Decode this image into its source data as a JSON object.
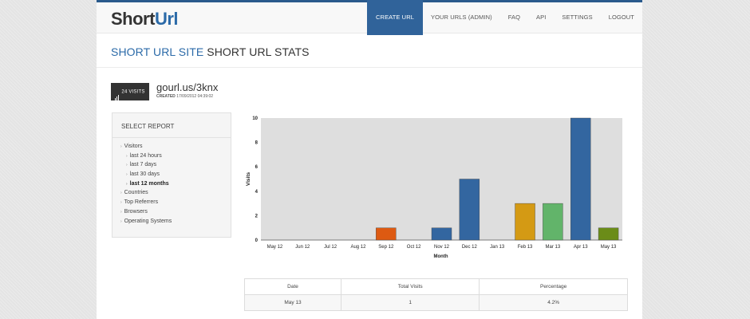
{
  "header": {
    "logo_part1": "Short",
    "logo_part2": "Url",
    "nav": [
      "CREATE URL",
      "YOUR URLS (ADMIN)",
      "FAQ",
      "API",
      "SETTINGS",
      "LOGOUT"
    ],
    "active_nav_index": 0
  },
  "page": {
    "heading_site": "SHORT URL SITE",
    "heading_title": "SHORT URL STATS"
  },
  "url_info": {
    "visits_badge": "24 VISITS",
    "short_url": "gourl.us/3knx",
    "created_label": "CREATED",
    "created_value": "17/09/2012 04:39:02"
  },
  "report": {
    "title": "SELECT REPORT",
    "items": [
      {
        "label": "Visitors",
        "level": 0,
        "bold": false
      },
      {
        "label": "last 24 hours",
        "level": 1,
        "bold": false
      },
      {
        "label": "last 7 days",
        "level": 1,
        "bold": false
      },
      {
        "label": "last 30 days",
        "level": 1,
        "bold": false
      },
      {
        "label": "last 12 months",
        "level": 1,
        "bold": true
      },
      {
        "label": "Countries",
        "level": 0,
        "bold": false
      },
      {
        "label": "Top Referrers",
        "level": 0,
        "bold": false
      },
      {
        "label": "Browsers",
        "level": 0,
        "bold": false
      },
      {
        "label": "Operating Systems",
        "level": 0,
        "bold": false
      }
    ]
  },
  "chart_data": {
    "type": "bar",
    "categories": [
      "May 12",
      "Jun 12",
      "Jul 12",
      "Aug 12",
      "Sep 12",
      "Oct 12",
      "Nov 12",
      "Dec 12",
      "Jan 13",
      "Feb 13",
      "Mar 13",
      "Apr 13",
      "May 13"
    ],
    "values": [
      0,
      0,
      0,
      0,
      1,
      0,
      1,
      5,
      0,
      3,
      3,
      10,
      1
    ],
    "bar_colors": [
      "#3366a0",
      "#3366a0",
      "#3366a0",
      "#3366a0",
      "#dd5a12",
      "#3366a0",
      "#3366a0",
      "#3366a0",
      "#3366a0",
      "#d49a14",
      "#62b46a",
      "#3366a0",
      "#6b8c18"
    ],
    "xlabel": "Month",
    "ylabel": "Visits",
    "ylim": [
      0,
      10
    ],
    "yticks": [
      0,
      2,
      4,
      6,
      8,
      10
    ],
    "grid": false,
    "legend": "none"
  },
  "table": {
    "headers": [
      "Date",
      "Total Visits",
      "Percentage"
    ],
    "rows": [
      [
        "May 13",
        "1",
        "4.2%"
      ]
    ]
  }
}
